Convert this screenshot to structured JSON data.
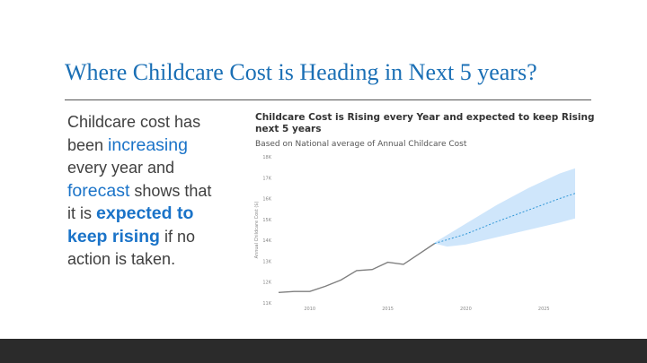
{
  "slide": {
    "title": "Where Childcare Cost is Heading in Next 5 years?"
  },
  "body": {
    "t1": "Childcare cost has been ",
    "t2": "increasing",
    "t3": " every year and ",
    "t4": "forecast",
    "t5": " shows that it is ",
    "t6": "expected to keep rising",
    "t7": " if no action is taken."
  },
  "chart_data": {
    "type": "line",
    "title": "Childcare Cost is Rising every Year and expected to keep Rising next 5 years",
    "subtitle": "Based on National average of Annual Childcare Cost",
    "ylabel": "Annual Childcare Cost ($)",
    "xlabel": "",
    "ylim": [
      11000,
      18000
    ],
    "xlim": [
      2008,
      2027
    ],
    "y_ticks": [
      "18K",
      "17K",
      "16K",
      "15K",
      "14K",
      "13K",
      "12K",
      "11K"
    ],
    "x_ticks": [
      "2010",
      "2015",
      "2020",
      "2025"
    ],
    "grid": false,
    "series": [
      {
        "name": "",
        "style": "solid",
        "color": "#7f7f7f",
        "points": [
          {
            "x": 2008.0,
            "y": 11500
          },
          {
            "x": 2009.0,
            "y": 11550
          },
          {
            "x": 2010.0,
            "y": 11550
          },
          {
            "x": 2011.0,
            "y": 11800
          },
          {
            "x": 2012.0,
            "y": 12100
          },
          {
            "x": 2013.0,
            "y": 12550
          },
          {
            "x": 2014.0,
            "y": 12600
          },
          {
            "x": 2015.0,
            "y": 12950
          },
          {
            "x": 2016.0,
            "y": 12850
          },
          {
            "x": 2017.0,
            "y": 13350
          },
          {
            "x": 2018.0,
            "y": 13850
          }
        ]
      },
      {
        "name": "",
        "style": "dashed",
        "color": "#2f96d6",
        "points": [
          {
            "x": 2018.0,
            "y": 13850
          },
          {
            "x": 2020.0,
            "y": 14300
          },
          {
            "x": 2022.0,
            "y": 14900
          },
          {
            "x": 2024.0,
            "y": 15450
          },
          {
            "x": 2026.0,
            "y": 16000
          },
          {
            "x": 2027.0,
            "y": 16250
          }
        ]
      }
    ],
    "confidence_band": {
      "color": "#cfe6fb",
      "upper": [
        {
          "x": 2018.0,
          "y": 13900
        },
        {
          "x": 2020.0,
          "y": 14800
        },
        {
          "x": 2022.0,
          "y": 15700
        },
        {
          "x": 2024.0,
          "y": 16500
        },
        {
          "x": 2026.0,
          "y": 17200
        },
        {
          "x": 2027.0,
          "y": 17450
        }
      ],
      "lower": [
        {
          "x": 2018.0,
          "y": 13850
        },
        {
          "x": 2018.8,
          "y": 13700
        },
        {
          "x": 2020.0,
          "y": 13800
        },
        {
          "x": 2022.0,
          "y": 14150
        },
        {
          "x": 2024.0,
          "y": 14500
        },
        {
          "x": 2026.0,
          "y": 14850
        },
        {
          "x": 2027.0,
          "y": 15050
        }
      ]
    }
  },
  "colors": {
    "title": "#1a6fb5",
    "highlight": "#1a73c8",
    "footer": "#2b2b2b"
  }
}
